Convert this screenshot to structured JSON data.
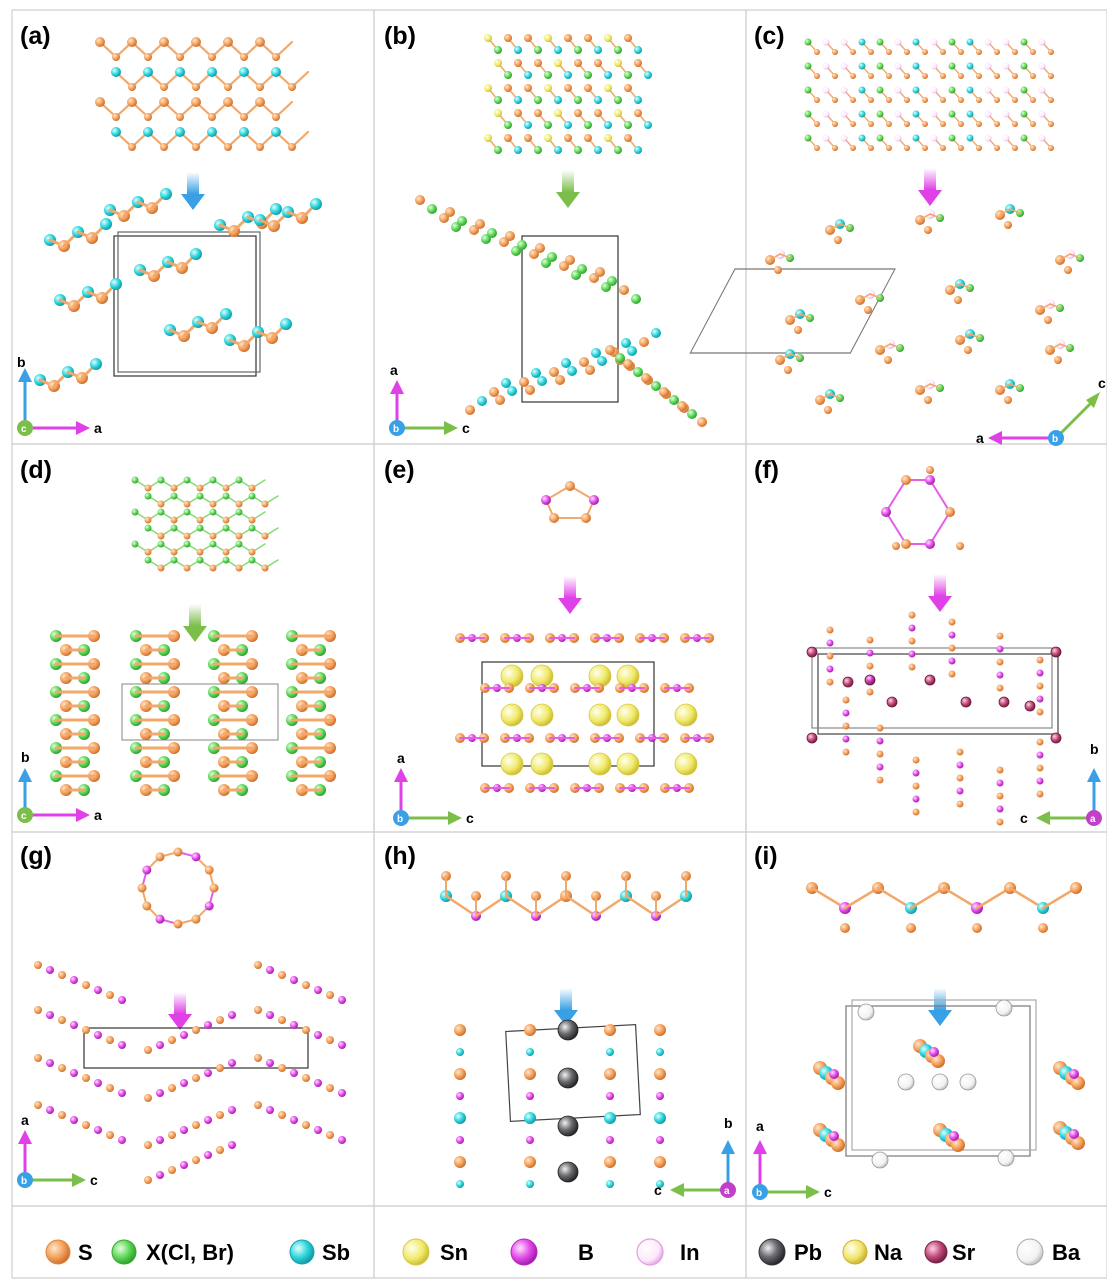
{
  "panels": [
    {
      "id": "a",
      "label": "(a)",
      "motif": "sheet",
      "arrow": "cyan",
      "axis": {
        "corner": "left",
        "center": "c",
        "up": "b",
        "side": "a"
      }
    },
    {
      "id": "b",
      "label": "(b)",
      "motif": "sheet2",
      "arrow": "green",
      "axis": {
        "corner": "left",
        "center": "b",
        "up": "a",
        "side": "c"
      }
    },
    {
      "id": "c",
      "label": "(c)",
      "motif": "ribbon",
      "arrow": "magenta",
      "axis": {
        "corner": "right-diag",
        "center": "b",
        "up": "c",
        "side": "a"
      }
    },
    {
      "id": "d",
      "label": "(d)",
      "motif": "zigzag",
      "arrow": "green",
      "axis": {
        "corner": "left",
        "center": "c",
        "up": "b",
        "side": "a"
      }
    },
    {
      "id": "e",
      "label": "(e)",
      "motif": "pentagon",
      "arrow": "magenta",
      "axis": {
        "corner": "left",
        "center": "b",
        "up": "a",
        "side": "c"
      }
    },
    {
      "id": "f",
      "label": "(f)",
      "motif": "hexagon",
      "arrow": "magenta",
      "axis": {
        "corner": "right",
        "center": "a",
        "up": "b",
        "side": "c"
      }
    },
    {
      "id": "g",
      "label": "(g)",
      "motif": "ring",
      "arrow": "magenta",
      "axis": {
        "corner": "left",
        "center": "b",
        "up": "a",
        "side": "c"
      }
    },
    {
      "id": "h",
      "label": "(h)",
      "motif": "chain",
      "arrow": "cyan",
      "axis": {
        "corner": "right",
        "center": "a",
        "up": "b",
        "side": "c"
      }
    },
    {
      "id": "i",
      "label": "(i)",
      "motif": "chain",
      "arrow": "cyan",
      "axis": {
        "corner": "left",
        "center": "b",
        "up": "a",
        "side": "c"
      }
    }
  ],
  "legend": [
    {
      "symbol": "S",
      "color": "#f4a15c",
      "style": "solid"
    },
    {
      "symbol": "X(Cl, Br)",
      "color": "#5fd85a",
      "style": "solid"
    },
    {
      "symbol": "Sb",
      "color": "#2fd5dc",
      "style": "solid"
    },
    {
      "symbol": "Sn",
      "color": "#f0ea6a",
      "style": "solid"
    },
    {
      "symbol": "B",
      "color": "#e24ae8",
      "style": "solid"
    },
    {
      "symbol": "In",
      "color": "#eea8ec",
      "style": "ring"
    },
    {
      "symbol": "Pb",
      "color": "#6a6a70",
      "style": "solid"
    },
    {
      "symbol": "Na",
      "color": "#f2e56c",
      "style": "solid"
    },
    {
      "symbol": "Sr",
      "color": "#c04878",
      "style": "solid"
    },
    {
      "symbol": "Ba",
      "color": "#e0e0e0",
      "style": "ring"
    }
  ],
  "colors": {
    "S": "#f4a15c",
    "X": "#5fd85a",
    "Sb": "#2fd5dc",
    "Sn": "#f0ea6a",
    "B": "#e24ae8",
    "cyan": "#3aa0e6",
    "green": "#7bbf4a",
    "magenta": "#e040e8",
    "panel_border": "#cccccc"
  }
}
